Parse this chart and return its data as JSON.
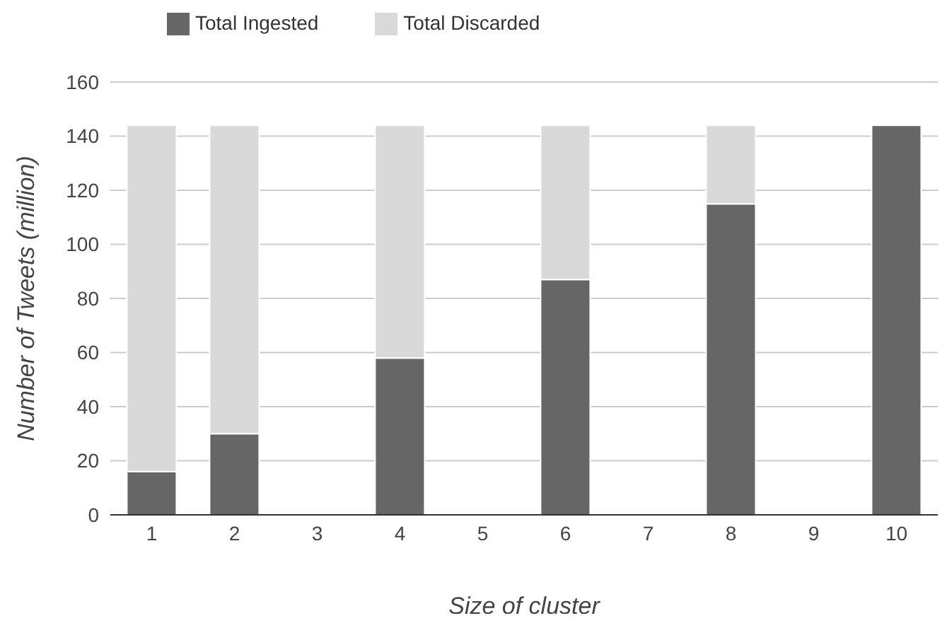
{
  "chart_data": {
    "type": "bar",
    "stacked": true,
    "xlabel": "Size of cluster",
    "ylabel": "Number of Tweets (million)",
    "categories": [
      "1",
      "2",
      "3",
      "4",
      "5",
      "6",
      "7",
      "8",
      "9",
      "10"
    ],
    "series": [
      {
        "name": "Total Ingested",
        "color": "#666666",
        "values": [
          16,
          30,
          null,
          58,
          null,
          87,
          null,
          115,
          null,
          144
        ]
      },
      {
        "name": "Total Discarded",
        "color": "#d9d9d9",
        "values": [
          128,
          114,
          null,
          86,
          null,
          57,
          null,
          29,
          null,
          null
        ]
      }
    ],
    "ylim": [
      0,
      160
    ],
    "yticks": [
      0,
      20,
      40,
      60,
      80,
      100,
      120,
      140,
      160
    ],
    "grid": "y",
    "legend": "top left"
  }
}
